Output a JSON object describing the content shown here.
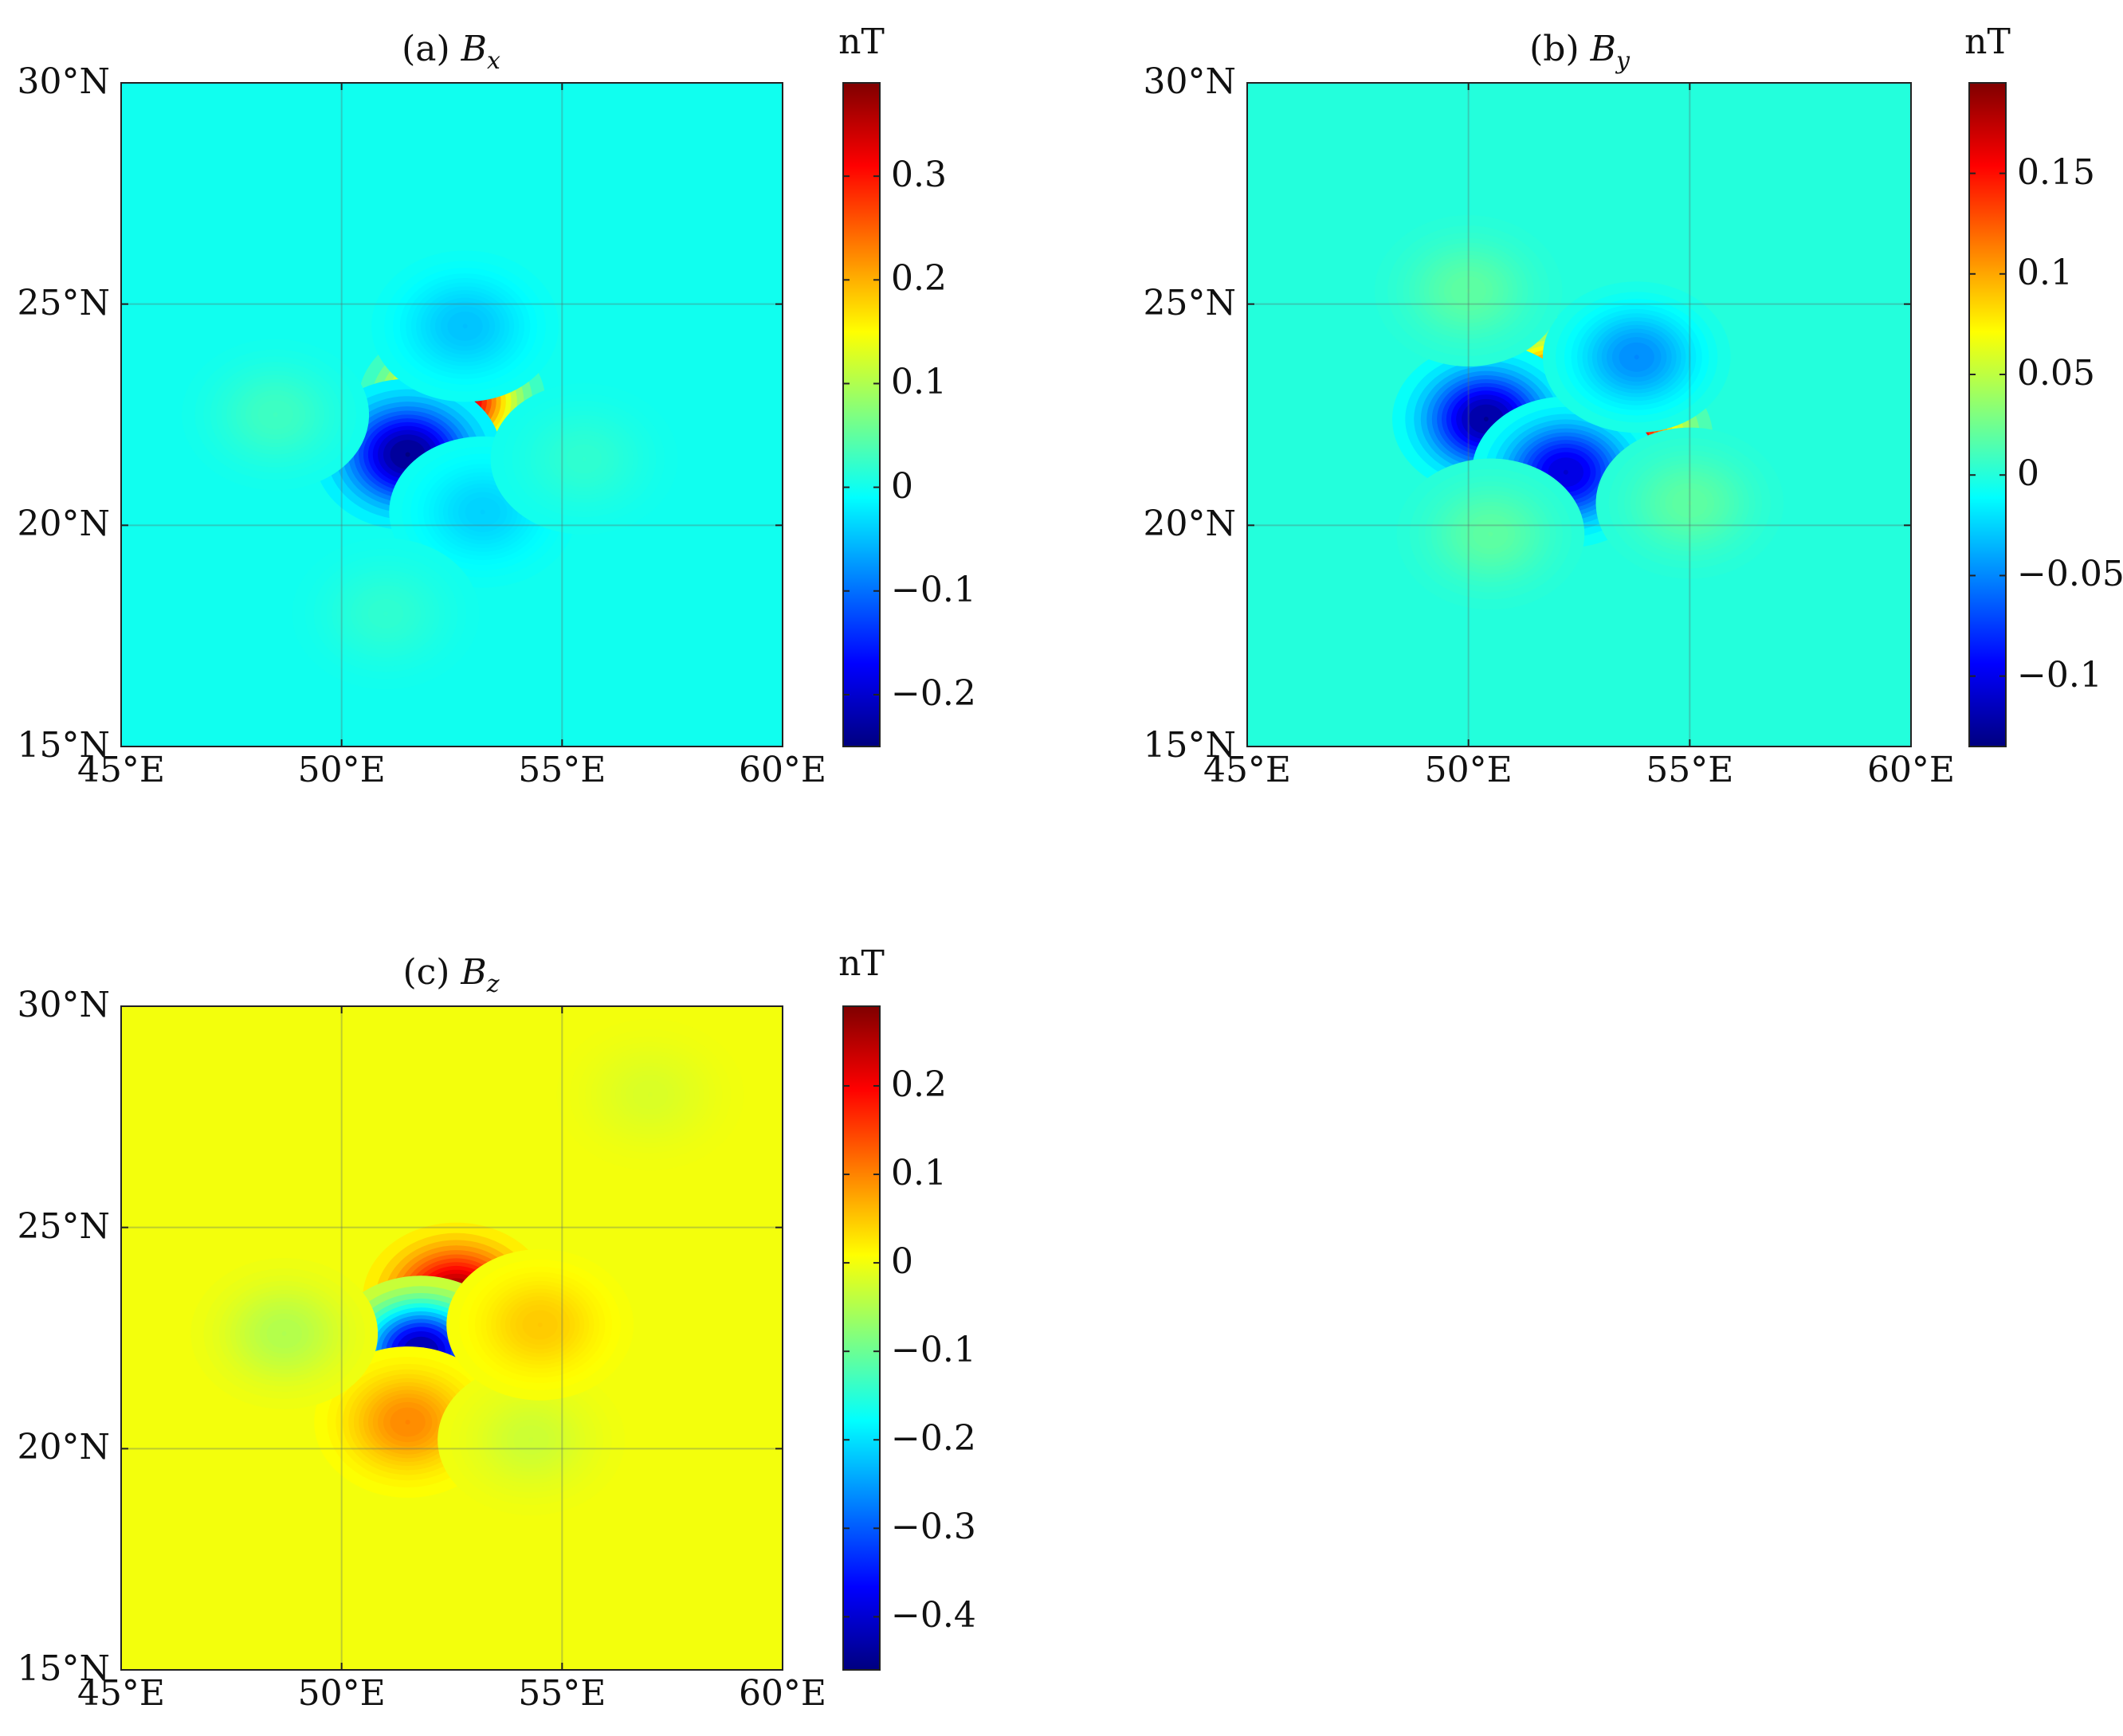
{
  "chart_data": [
    {
      "type": "heatmap",
      "title": "(a) ",
      "title_symbol": "B",
      "title_sub": "x",
      "colorbar_label": "nT",
      "colormap": "jet",
      "colorbar_range": [
        -0.25,
        0.39
      ],
      "colorbar_ticks": [
        {
          "value": 0.3,
          "label": "0.3"
        },
        {
          "value": 0.2,
          "label": "0.2"
        },
        {
          "value": 0.1,
          "label": "0.1"
        },
        {
          "value": 0,
          "label": "0"
        },
        {
          "value": -0.1,
          "label": "−0.1"
        },
        {
          "value": -0.2,
          "label": "−0.2"
        }
      ],
      "xlim": [
        45,
        60
      ],
      "ylim": [
        15,
        30
      ],
      "xticks": [
        {
          "value": 45,
          "label": "45°E"
        },
        {
          "value": 50,
          "label": "50°E"
        },
        {
          "value": 55,
          "label": "55°E"
        },
        {
          "value": 60,
          "label": "60°E"
        }
      ],
      "yticks": [
        {
          "value": 30,
          "label": "30°N"
        },
        {
          "value": 25,
          "label": "25°N"
        },
        {
          "value": 20,
          "label": "20°N"
        },
        {
          "value": 15,
          "label": "15°N"
        }
      ],
      "grid": true,
      "features": [
        {
          "lon": 52.5,
          "lat": 22.8,
          "value": 0.39
        },
        {
          "lon": 51.5,
          "lat": 21.6,
          "value": -0.25
        },
        {
          "lon": 52.8,
          "lat": 24.5,
          "value": -0.05
        },
        {
          "lon": 53.2,
          "lat": 20.3,
          "value": -0.04
        },
        {
          "lon": 48.5,
          "lat": 22.5,
          "value": 0.03
        },
        {
          "lon": 51.0,
          "lat": 18.0,
          "value": 0.02
        },
        {
          "lon": 55.5,
          "lat": 21.5,
          "value": 0.02
        }
      ]
    },
    {
      "type": "heatmap",
      "title": "(b) ",
      "title_symbol": "B",
      "title_sub": "y",
      "colorbar_label": "nT",
      "colormap": "jet",
      "colorbar_range": [
        -0.135,
        0.195
      ],
      "colorbar_ticks": [
        {
          "value": 0.15,
          "label": "0.15"
        },
        {
          "value": 0.1,
          "label": "0.1"
        },
        {
          "value": 0.05,
          "label": "0.05"
        },
        {
          "value": 0,
          "label": "0"
        },
        {
          "value": -0.05,
          "label": "−0.05"
        },
        {
          "value": -0.1,
          "label": "−0.1"
        }
      ],
      "xlim": [
        45,
        60
      ],
      "ylim": [
        15,
        30
      ],
      "xticks": [
        {
          "value": 45,
          "label": "45°E"
        },
        {
          "value": 50,
          "label": "50°E"
        },
        {
          "value": 55,
          "label": "55°E"
        },
        {
          "value": 60,
          "label": "60°E"
        }
      ],
      "yticks": [
        {
          "value": 30,
          "label": "30°N"
        },
        {
          "value": 25,
          "label": "25°N"
        },
        {
          "value": 20,
          "label": "20°N"
        },
        {
          "value": 15,
          "label": "15°N"
        }
      ],
      "grid": true,
      "features": [
        {
          "lon": 52.0,
          "lat": 23.0,
          "value": 0.19
        },
        {
          "lon": 53.4,
          "lat": 22.0,
          "value": 0.19
        },
        {
          "lon": 50.4,
          "lat": 22.4,
          "value": -0.13
        },
        {
          "lon": 52.2,
          "lat": 21.2,
          "value": -0.11
        },
        {
          "lon": 53.8,
          "lat": 23.8,
          "value": -0.05
        },
        {
          "lon": 50.0,
          "lat": 25.3,
          "value": 0.02
        },
        {
          "lon": 50.5,
          "lat": 19.8,
          "value": 0.02
        },
        {
          "lon": 55.0,
          "lat": 20.5,
          "value": 0.02
        }
      ]
    },
    {
      "type": "heatmap",
      "title": "(c) ",
      "title_symbol": "B",
      "title_sub": "z",
      "colorbar_label": "nT",
      "colormap": "jet",
      "colorbar_range": [
        -0.46,
        0.29
      ],
      "colorbar_ticks": [
        {
          "value": 0.2,
          "label": "0.2"
        },
        {
          "value": 0.1,
          "label": "0.1"
        },
        {
          "value": 0,
          "label": "0"
        },
        {
          "value": -0.1,
          "label": "−0.1"
        },
        {
          "value": -0.2,
          "label": "−0.2"
        },
        {
          "value": -0.3,
          "label": "−0.3"
        },
        {
          "value": -0.4,
          "label": "−0.4"
        }
      ],
      "xlim": [
        45,
        60
      ],
      "ylim": [
        15,
        30
      ],
      "xticks": [
        {
          "value": 45,
          "label": "45°E"
        },
        {
          "value": 50,
          "label": "50°E"
        },
        {
          "value": 55,
          "label": "55°E"
        },
        {
          "value": 60,
          "label": "60°E"
        }
      ],
      "yticks": [
        {
          "value": 30,
          "label": "30°N"
        },
        {
          "value": 25,
          "label": "25°N"
        },
        {
          "value": 20,
          "label": "20°N"
        },
        {
          "value": 15,
          "label": "15°N"
        }
      ],
      "grid": true,
      "features": [
        {
          "lon": 52.6,
          "lat": 23.4,
          "value": 0.29
        },
        {
          "lon": 51.8,
          "lat": 22.2,
          "value": -0.45
        },
        {
          "lon": 51.5,
          "lat": 20.6,
          "value": 0.1
        },
        {
          "lon": 48.7,
          "lat": 22.6,
          "value": -0.05
        },
        {
          "lon": 54.3,
          "lat": 20.2,
          "value": -0.03
        },
        {
          "lon": 54.5,
          "lat": 22.8,
          "value": 0.05
        },
        {
          "lon": 57.0,
          "lat": 28.0,
          "value": -0.02
        }
      ]
    }
  ]
}
